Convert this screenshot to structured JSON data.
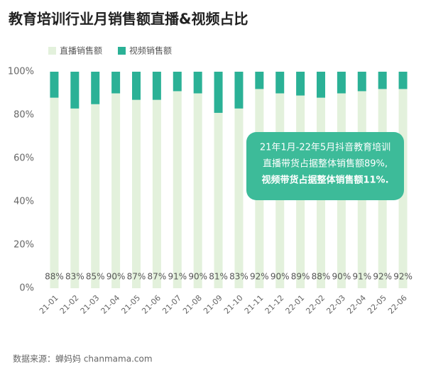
{
  "chart_data": {
    "type": "stacked_bar",
    "title": "教育培训行业月销售额直播&视频占比",
    "categories": [
      "21-01",
      "21-02",
      "21-03",
      "21-04",
      "21-05",
      "21-06",
      "21-07",
      "21-08",
      "21-09",
      "21-10",
      "21-11",
      "21-12",
      "22-01",
      "22-02",
      "22-03",
      "22-04",
      "22-05",
      "22-06"
    ],
    "series": [
      {
        "name": "直播销售额",
        "color": "#e3f1dc",
        "values": [
          88,
          83,
          85,
          90,
          87,
          87,
          91,
          90,
          81,
          83,
          92,
          90,
          89,
          88,
          90,
          91,
          92,
          92
        ],
        "value_labels": [
          "88%",
          "83%",
          "85%",
          "90%",
          "87%",
          "87%",
          "91%",
          "90%",
          "81%",
          "83%",
          "92%",
          "90%",
          "89%",
          "88%",
          "90%",
          "91%",
          "92%",
          "92%"
        ]
      },
      {
        "name": "视频销售额",
        "color": "#2bb196",
        "values": [
          12,
          17,
          15,
          10,
          13,
          13,
          9,
          10,
          19,
          17,
          8,
          10,
          11,
          12,
          10,
          9,
          8,
          8
        ]
      }
    ],
    "ylim": [
      0,
      100
    ],
    "yticks": [
      {
        "value": 0,
        "label": "0%"
      },
      {
        "value": 20,
        "label": "20%"
      },
      {
        "value": 40,
        "label": "40%"
      },
      {
        "value": 60,
        "label": "60%"
      },
      {
        "value": 80,
        "label": "80%"
      },
      {
        "value": 100,
        "label": "100%"
      }
    ],
    "grid": false,
    "annotation": [
      "21年1月-22年5月抖音教育培训",
      "直播带货占据整体销售额89%,",
      "视频带货占据整体销售额11%."
    ],
    "source": "数据来源：蝉妈妈 chanmama.com"
  }
}
